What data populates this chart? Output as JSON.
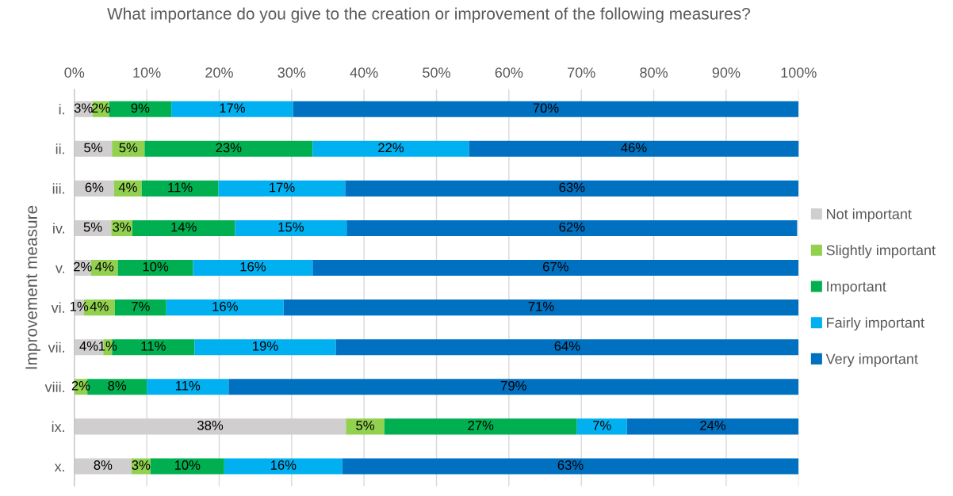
{
  "chart_data": {
    "type": "bar",
    "orientation": "horizontal",
    "stacked": true,
    "title": "What importance do you give to the creation or improvement of the following measures?",
    "ylabel": "Improvement measure",
    "categories": [
      "i.",
      "ii.",
      "iii.",
      "iv.",
      "v.",
      "vi.",
      "vii.",
      "viii.",
      "ix.",
      "x."
    ],
    "series": [
      {
        "name": "Not important",
        "color": "#d0cece",
        "values": [
          2.5,
          5.2,
          5.5,
          5.1,
          2.3,
          1.3,
          4.0,
          0,
          37.5,
          7.9
        ],
        "value_labels": [
          "3%",
          "5%",
          "6%",
          "5%",
          "2%",
          "1%",
          "4%",
          null,
          "38%",
          "8%"
        ]
      },
      {
        "name": "Slightly important",
        "color": "#92d050",
        "values": [
          2.3,
          4.5,
          3.8,
          2.9,
          3.7,
          4.3,
          1.2,
          1.8,
          5.3,
          2.6
        ],
        "value_labels": [
          "2%",
          "5%",
          "4%",
          "3%",
          "4%",
          "4%",
          "1%",
          "2%",
          "5%",
          "3%"
        ]
      },
      {
        "name": "Important",
        "color": "#00b050",
        "values": [
          8.6,
          23.2,
          10.6,
          14.2,
          10.4,
          7.1,
          11.4,
          8.2,
          26.6,
          10.2
        ],
        "value_labels": [
          "9%",
          "23%",
          "11%",
          "14%",
          "10%",
          "7%",
          "11%",
          "8%",
          "27%",
          "10%"
        ]
      },
      {
        "name": "Fairly important",
        "color": "#00b0f0",
        "values": [
          16.8,
          21.6,
          17.5,
          15.4,
          16.5,
          16.2,
          19.5,
          11.3,
          6.9,
          16.3
        ],
        "value_labels": [
          "17%",
          "22%",
          "17%",
          "15%",
          "16%",
          "16%",
          "19%",
          "11%",
          "7%",
          "16%"
        ]
      },
      {
        "name": "Very important",
        "color": "#0070c0",
        "values": [
          69.8,
          45.6,
          62.6,
          62.2,
          67.1,
          71.1,
          63.9,
          78.7,
          23.7,
          63.0
        ],
        "value_labels": [
          "70%",
          "46%",
          "63%",
          "62%",
          "67%",
          "71%",
          "64%",
          "79%",
          "24%",
          "63%"
        ]
      }
    ],
    "xlim": [
      0,
      100
    ],
    "xticks": [
      {
        "value": 0,
        "label": "0%"
      },
      {
        "value": 10,
        "label": "10%"
      },
      {
        "value": 20,
        "label": "20%"
      },
      {
        "value": 30,
        "label": "30%"
      },
      {
        "value": 40,
        "label": "40%"
      },
      {
        "value": 50,
        "label": "50%"
      },
      {
        "value": 60,
        "label": "60%"
      },
      {
        "value": 70,
        "label": "70%"
      },
      {
        "value": 80,
        "label": "80%"
      },
      {
        "value": 90,
        "label": "90%"
      },
      {
        "value": 100,
        "label": "100%"
      }
    ],
    "grid": "x",
    "legend": "right"
  }
}
